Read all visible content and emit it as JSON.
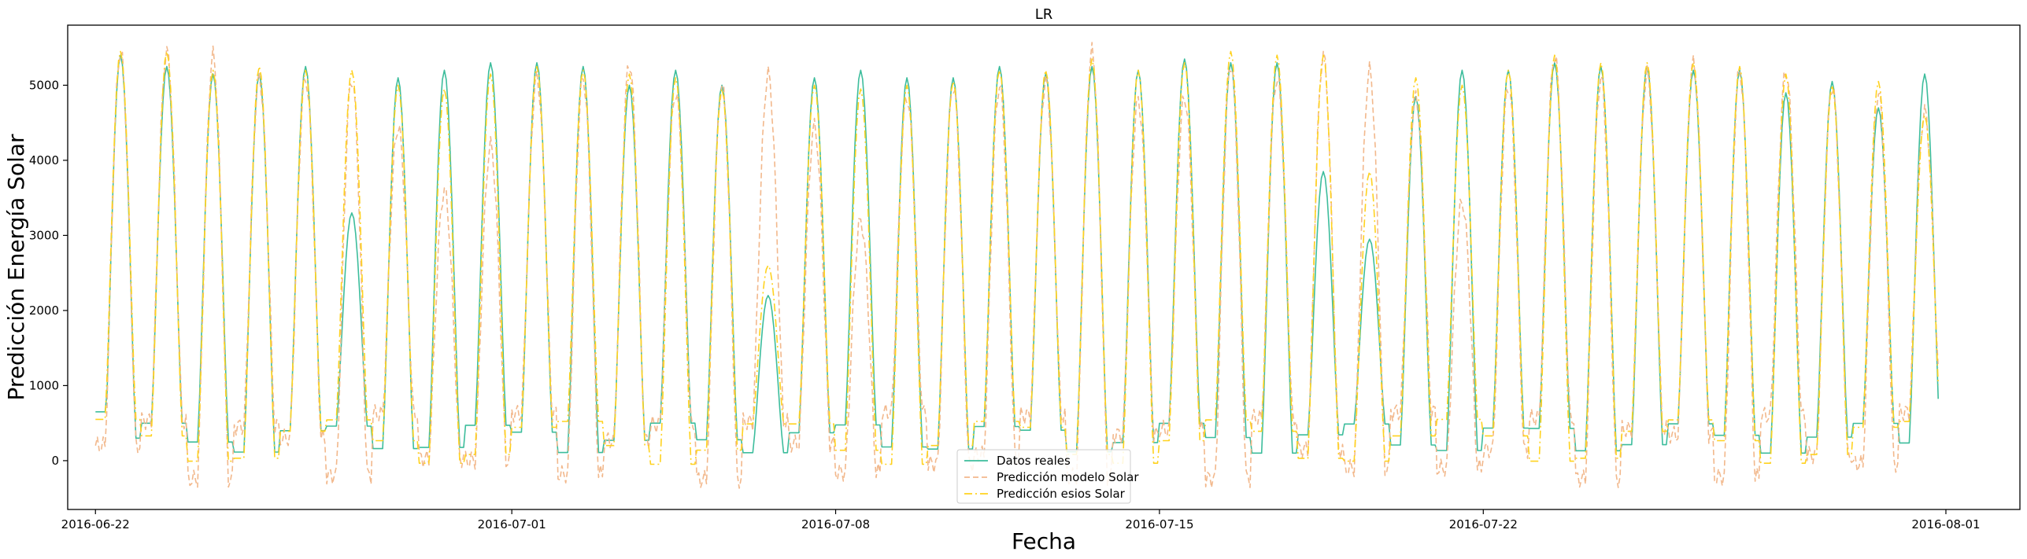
{
  "chart_data": {
    "type": "line",
    "title": "LR",
    "xlabel": "Fecha",
    "ylabel": "Predicción Energía Solar",
    "x_range": [
      "2016-06-21",
      "2016-08-02"
    ],
    "xlim": [
      -0.6,
      41.6
    ],
    "ylim": [
      -650,
      5800
    ],
    "x_ticks": [
      {
        "date": "2016-06-22",
        "label": "2016-06-22"
      },
      {
        "date": "2016-07-01",
        "label": "2016-07-01"
      },
      {
        "date": "2016-07-08",
        "label": "2016-07-08"
      },
      {
        "date": "2016-07-15",
        "label": "2016-07-15"
      },
      {
        "date": "2016-07-22",
        "label": "2016-07-22"
      },
      {
        "date": "2016-08-01",
        "label": "2016-08-01"
      }
    ],
    "y_ticks": [
      0,
      1000,
      2000,
      3000,
      4000,
      5000
    ],
    "grid": false,
    "legend_position": "lower-center",
    "sampling": "hourly",
    "daily_peaks": {
      "dates": [
        "2016-06-22",
        "2016-06-23",
        "2016-06-24",
        "2016-06-25",
        "2016-06-26",
        "2016-06-27",
        "2016-06-28",
        "2016-06-29",
        "2016-06-30",
        "2016-07-01",
        "2016-07-02",
        "2016-07-03",
        "2016-07-04",
        "2016-07-05",
        "2016-07-06",
        "2016-07-07",
        "2016-07-08",
        "2016-07-09",
        "2016-07-10",
        "2016-07-11",
        "2016-07-12",
        "2016-07-13",
        "2016-07-14",
        "2016-07-15",
        "2016-07-16",
        "2016-07-17",
        "2016-07-18",
        "2016-07-19",
        "2016-07-20",
        "2016-07-21",
        "2016-07-22",
        "2016-07-23",
        "2016-07-24",
        "2016-07-25",
        "2016-07-26",
        "2016-07-27",
        "2016-07-28",
        "2016-07-29",
        "2016-07-30",
        "2016-07-31"
      ],
      "Datos reales": [
        5400,
        5250,
        5150,
        5150,
        5250,
        3300,
        5100,
        5200,
        5300,
        5300,
        5250,
        5000,
        5200,
        5000,
        2200,
        5100,
        5200,
        5100,
        5100,
        5250,
        5150,
        5250,
        5200,
        5350,
        5300,
        5300,
        3850,
        2950,
        4850,
        5200,
        5200,
        5300,
        5250,
        5250,
        5200,
        5200,
        4900,
        5050,
        4700,
        5150
      ],
      "Predicción modelo Solar": [
        5450,
        5450,
        5400,
        5100,
        5100,
        5100,
        4450,
        3600,
        4200,
        5100,
        5100,
        5300,
        4900,
        5000,
        5150,
        4450,
        3200,
        4850,
        5000,
        5000,
        5050,
        5450,
        4800,
        4850,
        5300,
        5100,
        5400,
        5200,
        4850,
        3450,
        5000,
        5400,
        5100,
        5150,
        5300,
        5200,
        5200,
        5000,
        4900,
        4650
      ],
      "Predicción esios Solar": [
        5450,
        5450,
        5200,
        5250,
        5200,
        5200,
        5000,
        4950,
        5150,
        5250,
        5200,
        5150,
        5100,
        4950,
        2600,
        5000,
        4950,
        5000,
        5050,
        5200,
        5200,
        5350,
        5200,
        5300,
        5450,
        5400,
        5400,
        3850,
        5100,
        5000,
        5200,
        5400,
        5300,
        5300,
        5300,
        5250,
        5150,
        5000,
        5050,
        4600
      ]
    },
    "series": [
      {
        "name": "Datos reales",
        "color": "#3dbd9c",
        "style": "solid"
      },
      {
        "name": "Predicción modelo Solar",
        "color": "#f2b88c",
        "style": "dashed"
      },
      {
        "name": "Predicción esios Solar",
        "color": "#ffd21f",
        "style": "dashdot"
      }
    ]
  }
}
